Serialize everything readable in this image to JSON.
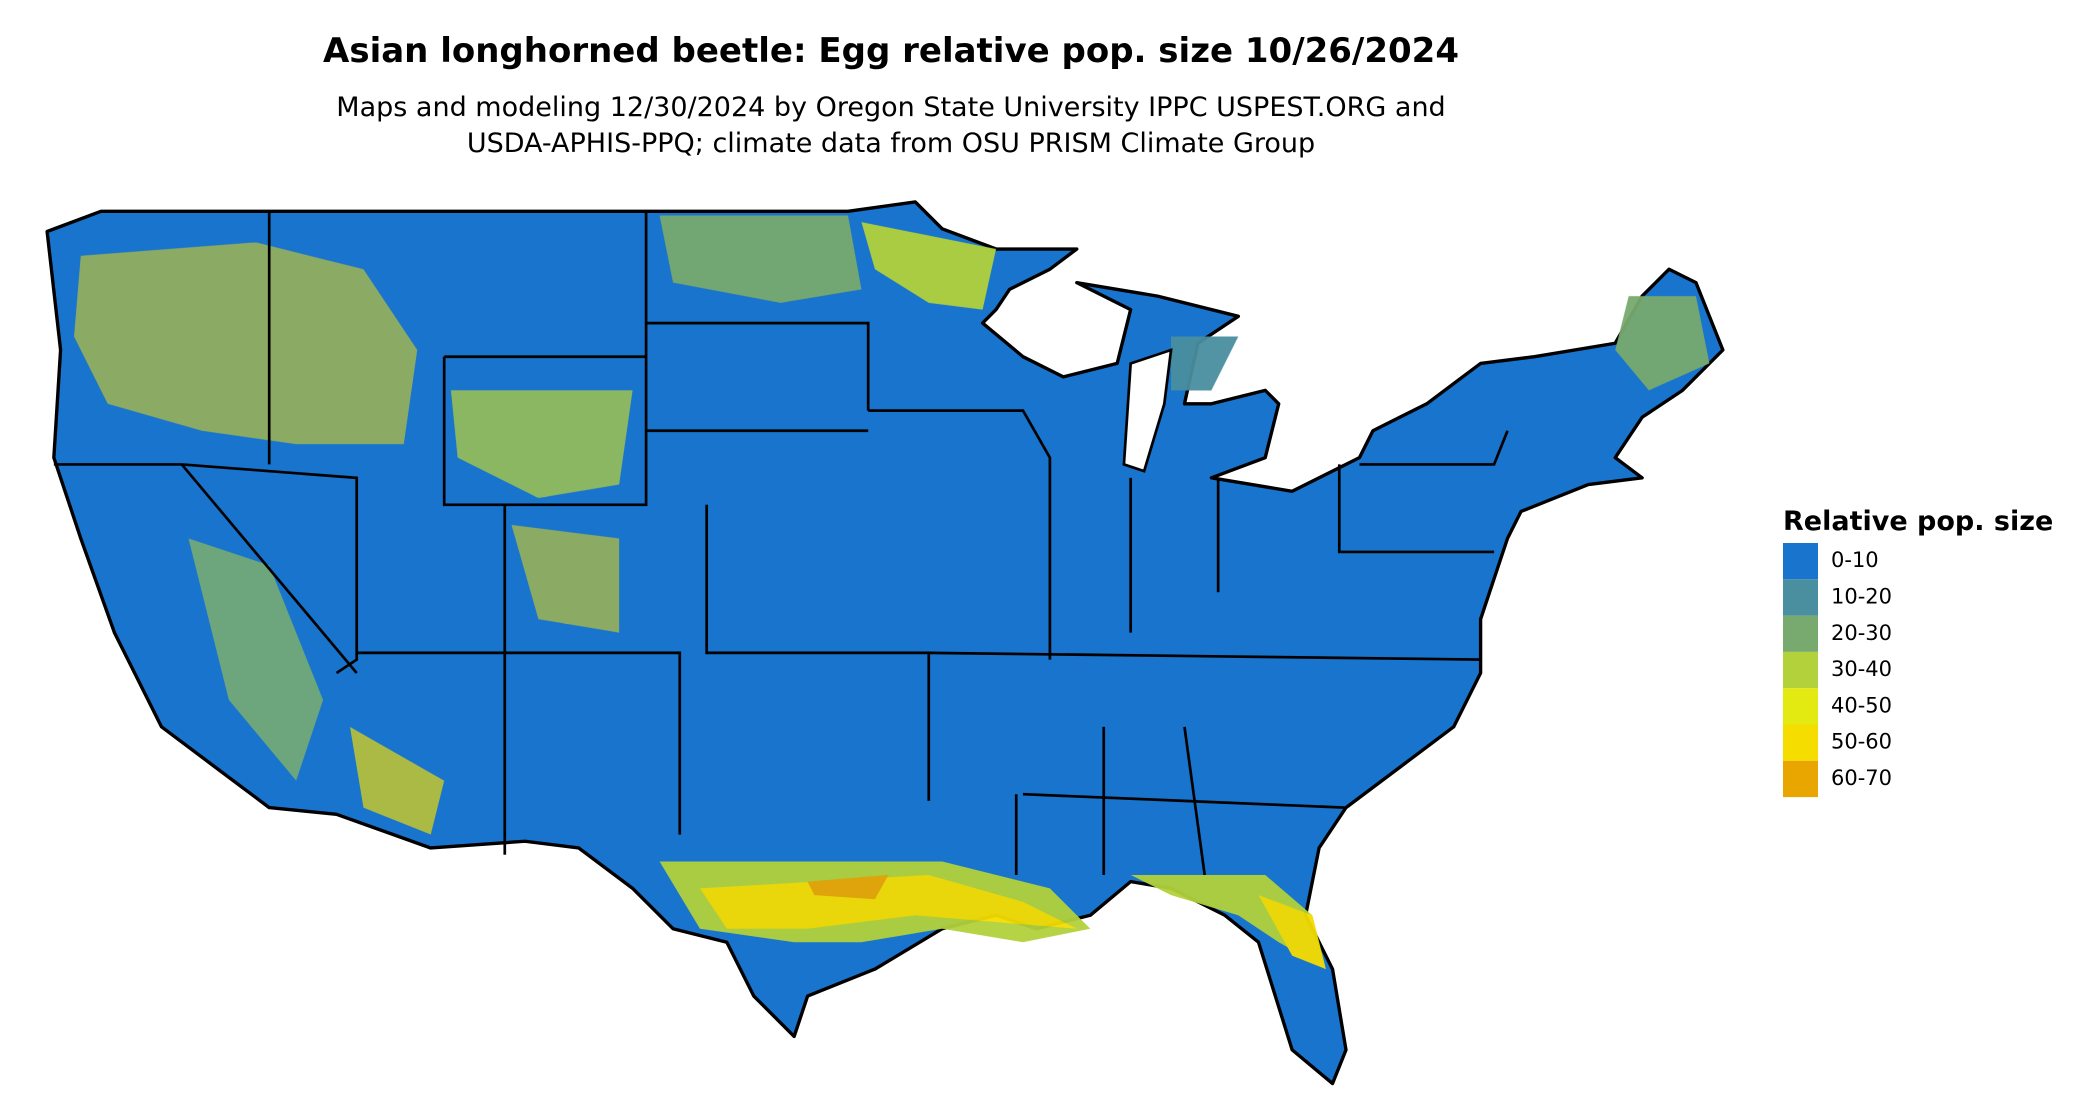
{
  "title": "Asian longhorned beetle: Egg relative pop. size 10/26/2024",
  "subtitle": [
    "Maps and modeling 12/30/2024 by Oregon State University IPPC USPEST.ORG and",
    "USDA-APHIS-PPQ; climate data from OSU PRISM Climate Group"
  ],
  "legend": {
    "title": "Relative pop. size",
    "items": [
      {
        "label": "0-10",
        "color": "#1874cd"
      },
      {
        "label": "10-20",
        "color": "#4a8fa0"
      },
      {
        "label": "20-30",
        "color": "#78a96e"
      },
      {
        "label": "30-40",
        "color": "#b2d13a"
      },
      {
        "label": "40-50",
        "color": "#e2ea12"
      },
      {
        "label": "50-60",
        "color": "#f5dd00"
      },
      {
        "label": "60-70",
        "color": "#eaa600"
      }
    ]
  }
}
